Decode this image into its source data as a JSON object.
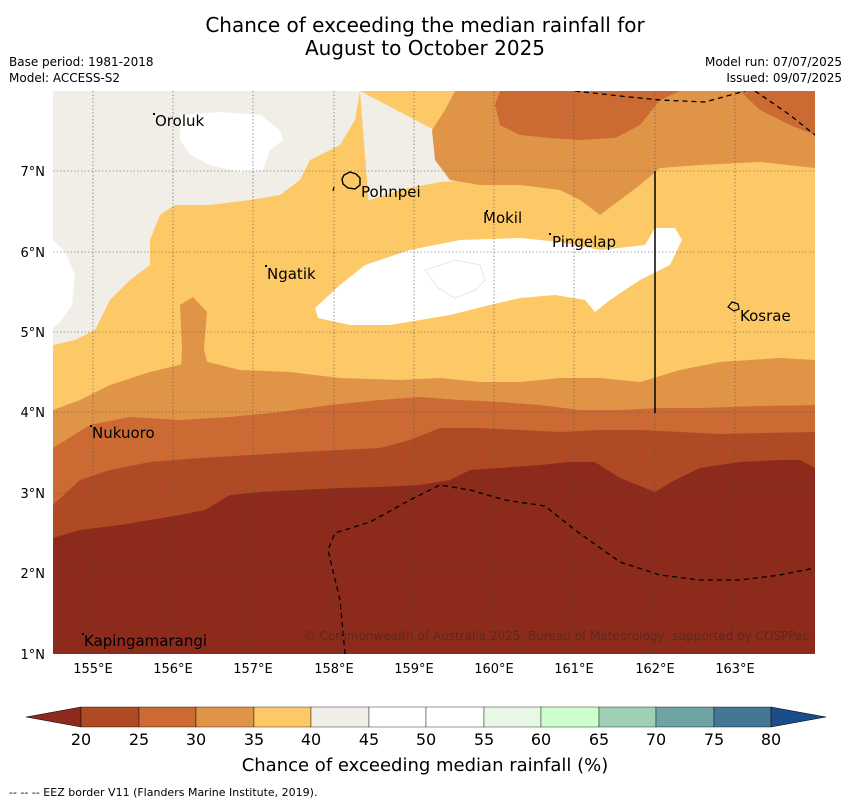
{
  "title_line1": "Chance of exceeding the median rainfall for",
  "title_line2": "August to October 2025",
  "base_period": "Base period: 1981-2018",
  "model": "Model: ACCESS-S2",
  "model_run": "Model run: 07/07/2025",
  "issued": "Issued: 09/07/2025",
  "copyright": "© Commonwealth of Australia 2025, Bureau of Meteorology, supported by COSPPac",
  "places": {
    "oroluk": "Oroluk",
    "pohnpei": "Pohnpei",
    "mokil": "Mokil",
    "pingelap": "Pingelap",
    "ngatik": "Ngatik",
    "kosrae": "Kosrae",
    "nukuoro": "Nukuoro",
    "kapingamarangi": "Kapingamarangi"
  },
  "lon_ticks": [
    "155°E",
    "156°E",
    "157°E",
    "158°E",
    "159°E",
    "160°E",
    "161°E",
    "162°E",
    "163°E"
  ],
  "lat_ticks": [
    "7°N",
    "6°N",
    "5°N",
    "4°N",
    "3°N",
    "2°N",
    "1°N"
  ],
  "colorbar": {
    "title": "Chance of exceeding median rainfall (%)",
    "ticks": [
      "20",
      "25",
      "30",
      "35",
      "40",
      "45",
      "50",
      "55",
      "60",
      "65",
      "70",
      "75",
      "80"
    ],
    "colors": {
      "below20": "#8c2a1c",
      "c20_25": "#b04a25",
      "c25_30": "#cc6a33",
      "c30_35": "#e09448",
      "c35_40": "#fdc966",
      "c40_45": "#f1ede7",
      "c45_50": "#ffffff",
      "c50_55": "#ffffff",
      "c55_60": "#e9f7e7",
      "c60_65": "#ccffcc",
      "c65_70": "#9fd0b5",
      "c70_75": "#6ea3a3",
      "c75_80": "#447795",
      "above80": "#1a4c8a"
    }
  },
  "footer": "--  --  -- EEZ border V11 (Flanders Marine Institute, 2019)."
}
